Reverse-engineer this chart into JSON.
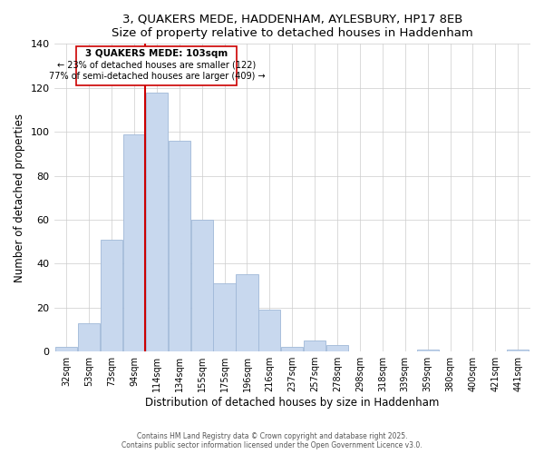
{
  "title": "3, QUAKERS MEDE, HADDENHAM, AYLESBURY, HP17 8EB",
  "subtitle": "Size of property relative to detached houses in Haddenham",
  "xlabel": "Distribution of detached houses by size in Haddenham",
  "ylabel": "Number of detached properties",
  "bar_color": "#c8d8ee",
  "bar_edge_color": "#a0b8d8",
  "categories": [
    "32sqm",
    "53sqm",
    "73sqm",
    "94sqm",
    "114sqm",
    "134sqm",
    "155sqm",
    "175sqm",
    "196sqm",
    "216sqm",
    "237sqm",
    "257sqm",
    "278sqm",
    "298sqm",
    "318sqm",
    "339sqm",
    "359sqm",
    "380sqm",
    "400sqm",
    "421sqm",
    "441sqm"
  ],
  "values": [
    2,
    13,
    51,
    99,
    118,
    96,
    60,
    31,
    35,
    19,
    2,
    5,
    3,
    0,
    0,
    0,
    1,
    0,
    0,
    0,
    1
  ],
  "ylim": [
    0,
    140
  ],
  "yticks": [
    0,
    20,
    40,
    60,
    80,
    100,
    120,
    140
  ],
  "vline_color": "#cc0000",
  "annotation_title": "3 QUAKERS MEDE: 103sqm",
  "annotation_line1": "← 23% of detached houses are smaller (122)",
  "annotation_line2": "77% of semi-detached houses are larger (409) →",
  "annotation_box_color": "#ffffff",
  "annotation_box_edge": "#cc0000",
  "footer1": "Contains HM Land Registry data © Crown copyright and database right 2025.",
  "footer2": "Contains public sector information licensed under the Open Government Licence v3.0.",
  "background_color": "#ffffff",
  "grid_color": "#cccccc"
}
